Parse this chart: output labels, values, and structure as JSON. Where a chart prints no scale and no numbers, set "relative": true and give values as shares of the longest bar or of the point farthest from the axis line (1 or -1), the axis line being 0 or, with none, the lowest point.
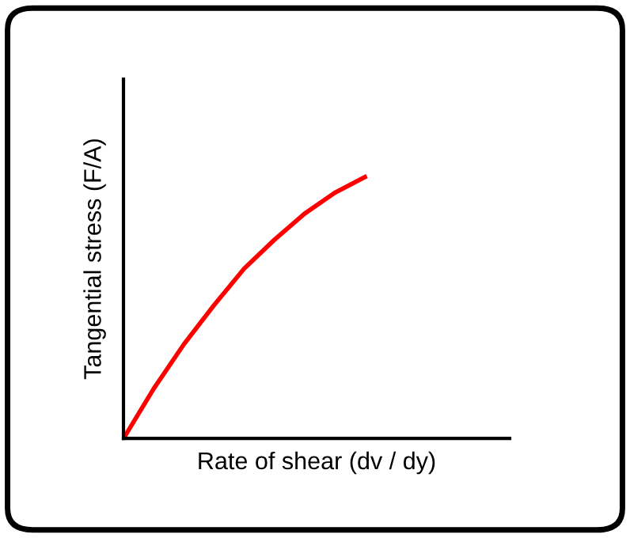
{
  "chart_data": {
    "type": "line",
    "relative": true,
    "xlabel": "Rate of shear (dv / dy)",
    "ylabel": "Tangential stress (F/A)",
    "categories": [
      null,
      null,
      null,
      null,
      null,
      null,
      null,
      null,
      null
    ],
    "series": [
      {
        "color": "#ff0000",
        "values": [
          0,
          0.19,
          0.36,
          0.51,
          0.65,
          0.76,
          0.86,
          0.94,
          1
        ]
      }
    ],
    "marker": "none",
    "line_style": "solid",
    "legend": false
  }
}
